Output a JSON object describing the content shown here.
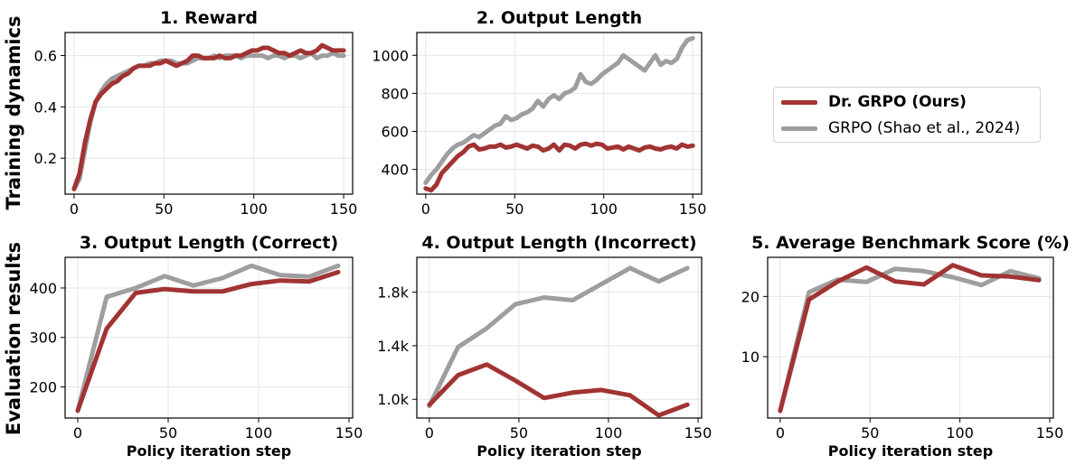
{
  "row_labels": {
    "top": "Training dynamics",
    "bottom": "Evaluation results"
  },
  "legend": [
    {
      "label": "Dr. GRPO (Ours)",
      "color": "#a23333",
      "bold": true
    },
    {
      "label": "GRPO (Shao et al., 2024)",
      "color": "#9e9e9e",
      "bold": false
    }
  ],
  "colors": {
    "dr_grpo": "#a23333",
    "grpo": "#9e9e9e",
    "grid": "#e6e6e6"
  },
  "chart_data": [
    {
      "type": "line",
      "title": "1. Reward",
      "xlabel": "",
      "ylabel": "",
      "grid": true,
      "xlim": [
        -5,
        155
      ],
      "ylim": [
        0.06,
        0.69
      ],
      "xticks": [
        0,
        50,
        100,
        150
      ],
      "yticks": [
        0.2,
        0.4,
        0.6
      ],
      "ytick_labels": [
        "0.2",
        "0.4",
        "0.6"
      ],
      "x": [
        0,
        3,
        6,
        9,
        12,
        15,
        18,
        21,
        24,
        27,
        30,
        33,
        36,
        39,
        42,
        45,
        48,
        51,
        54,
        57,
        60,
        63,
        66,
        69,
        72,
        75,
        78,
        81,
        84,
        87,
        90,
        93,
        96,
        99,
        102,
        105,
        108,
        111,
        114,
        117,
        120,
        123,
        126,
        129,
        132,
        135,
        138,
        141,
        144,
        147,
        150
      ],
      "series": [
        {
          "name": "Dr. GRPO (Ours)",
          "color": "#a23333",
          "values": [
            0.08,
            0.14,
            0.26,
            0.35,
            0.42,
            0.45,
            0.47,
            0.49,
            0.5,
            0.52,
            0.53,
            0.55,
            0.56,
            0.56,
            0.56,
            0.57,
            0.57,
            0.58,
            0.57,
            0.56,
            0.57,
            0.58,
            0.6,
            0.6,
            0.59,
            0.59,
            0.59,
            0.6,
            0.59,
            0.59,
            0.6,
            0.6,
            0.61,
            0.62,
            0.62,
            0.63,
            0.63,
            0.62,
            0.61,
            0.61,
            0.6,
            0.61,
            0.62,
            0.61,
            0.61,
            0.62,
            0.64,
            0.63,
            0.62,
            0.62,
            0.62
          ]
        },
        {
          "name": "GRPO (Shao et al., 2024)",
          "color": "#9e9e9e",
          "values": [
            0.08,
            0.12,
            0.23,
            0.34,
            0.42,
            0.46,
            0.49,
            0.51,
            0.52,
            0.53,
            0.54,
            0.55,
            0.56,
            0.56,
            0.57,
            0.57,
            0.58,
            0.58,
            0.58,
            0.57,
            0.57,
            0.57,
            0.58,
            0.59,
            0.59,
            0.59,
            0.6,
            0.59,
            0.6,
            0.6,
            0.6,
            0.59,
            0.6,
            0.6,
            0.6,
            0.6,
            0.59,
            0.6,
            0.6,
            0.59,
            0.6,
            0.6,
            0.59,
            0.6,
            0.61,
            0.59,
            0.6,
            0.6,
            0.61,
            0.6,
            0.6
          ]
        }
      ]
    },
    {
      "type": "line",
      "title": "2. Output Length",
      "xlabel": "",
      "ylabel": "",
      "grid": true,
      "xlim": [
        -5,
        155
      ],
      "ylim": [
        270,
        1120
      ],
      "xticks": [
        0,
        50,
        100,
        150
      ],
      "yticks": [
        400,
        600,
        800,
        1000
      ],
      "ytick_labels": [
        "400",
        "600",
        "800",
        "1000"
      ],
      "x": [
        0,
        3,
        6,
        9,
        12,
        15,
        18,
        21,
        24,
        27,
        30,
        33,
        36,
        39,
        42,
        45,
        48,
        51,
        54,
        57,
        60,
        63,
        66,
        69,
        72,
        75,
        78,
        81,
        84,
        87,
        90,
        93,
        96,
        99,
        102,
        105,
        108,
        111,
        114,
        117,
        120,
        123,
        126,
        129,
        132,
        135,
        138,
        141,
        144,
        147,
        150
      ],
      "series": [
        {
          "name": "Dr. GRPO (Ours)",
          "color": "#a23333",
          "values": [
            300,
            290,
            320,
            380,
            410,
            440,
            470,
            490,
            520,
            530,
            505,
            510,
            520,
            520,
            530,
            515,
            520,
            530,
            520,
            510,
            525,
            520,
            500,
            510,
            530,
            500,
            530,
            525,
            510,
            530,
            535,
            525,
            535,
            530,
            510,
            515,
            520,
            505,
            520,
            510,
            500,
            515,
            520,
            510,
            505,
            515,
            520,
            510,
            530,
            520,
            525
          ]
        },
        {
          "name": "GRPO (Shao et al., 2024)",
          "color": "#9e9e9e",
          "values": [
            330,
            370,
            400,
            440,
            480,
            510,
            530,
            540,
            560,
            580,
            570,
            590,
            610,
            630,
            640,
            680,
            660,
            670,
            690,
            700,
            720,
            760,
            730,
            770,
            790,
            770,
            800,
            810,
            830,
            900,
            860,
            850,
            870,
            900,
            920,
            940,
            960,
            1000,
            980,
            960,
            940,
            920,
            960,
            1000,
            950,
            970,
            960,
            980,
            1040,
            1080,
            1090
          ]
        }
      ]
    },
    {
      "type": "line",
      "title": "3. Output Length (Correct)",
      "xlabel": "Policy iteration step",
      "ylabel": "",
      "grid": true,
      "xlim": [
        -7,
        152
      ],
      "ylim": [
        137,
        462
      ],
      "xticks": [
        0,
        50,
        100,
        150
      ],
      "yticks": [
        200,
        300,
        400
      ],
      "ytick_labels": [
        "200",
        "300",
        "400"
      ],
      "x": [
        0,
        16,
        32,
        48,
        64,
        80,
        96,
        112,
        128,
        144
      ],
      "series": [
        {
          "name": "Dr. GRPO (Ours)",
          "color": "#a23333",
          "values": [
            152,
            318,
            390,
            398,
            393,
            393,
            408,
            415,
            413,
            432
          ]
        },
        {
          "name": "GRPO (Shao et al., 2024)",
          "color": "#9e9e9e",
          "values": [
            152,
            382,
            400,
            424,
            405,
            420,
            445,
            426,
            423,
            445
          ]
        }
      ]
    },
    {
      "type": "line",
      "title": "4. Output Length (Incorrect)",
      "xlabel": "Policy iteration step",
      "ylabel": "",
      "grid": true,
      "xlim": [
        -7,
        152
      ],
      "ylim": [
        860,
        2060
      ],
      "xticks": [
        0,
        50,
        100,
        150
      ],
      "yticks": [
        1000,
        1400,
        1800
      ],
      "ytick_labels": [
        "1.0k",
        "1.4k",
        "1.8k"
      ],
      "x": [
        0,
        16,
        32,
        48,
        64,
        80,
        96,
        112,
        128,
        144
      ],
      "series": [
        {
          "name": "Dr. GRPO (Ours)",
          "color": "#a23333",
          "values": [
            960,
            1180,
            1260,
            1140,
            1010,
            1050,
            1070,
            1030,
            880,
            960
          ]
        },
        {
          "name": "GRPO (Shao et al., 2024)",
          "color": "#9e9e9e",
          "values": [
            950,
            1390,
            1530,
            1710,
            1760,
            1740,
            1860,
            1980,
            1880,
            1980
          ]
        }
      ]
    },
    {
      "type": "line",
      "title": "5. Average Benchmark Score (%)",
      "xlabel": "Policy iteration step",
      "ylabel": "",
      "grid": true,
      "xlim": [
        -7,
        152
      ],
      "ylim": [
        -0.2,
        26.5
      ],
      "xticks": [
        0,
        50,
        100,
        150
      ],
      "yticks": [
        10,
        20
      ],
      "ytick_labels": [
        "10",
        "20"
      ],
      "x": [
        0,
        16,
        32,
        48,
        64,
        80,
        96,
        112,
        128,
        144
      ],
      "series": [
        {
          "name": "Dr. GRPO (Ours)",
          "color": "#a23333",
          "values": [
            1,
            19.5,
            22.5,
            24.8,
            22.5,
            22.0,
            25.2,
            23.5,
            23.3,
            22.7
          ]
        },
        {
          "name": "GRPO (Shao et al., 2024)",
          "color": "#9e9e9e",
          "values": [
            1,
            20.7,
            22.8,
            22.4,
            24.6,
            24.2,
            23.2,
            21.9,
            24.2,
            23.0
          ]
        }
      ]
    }
  ]
}
